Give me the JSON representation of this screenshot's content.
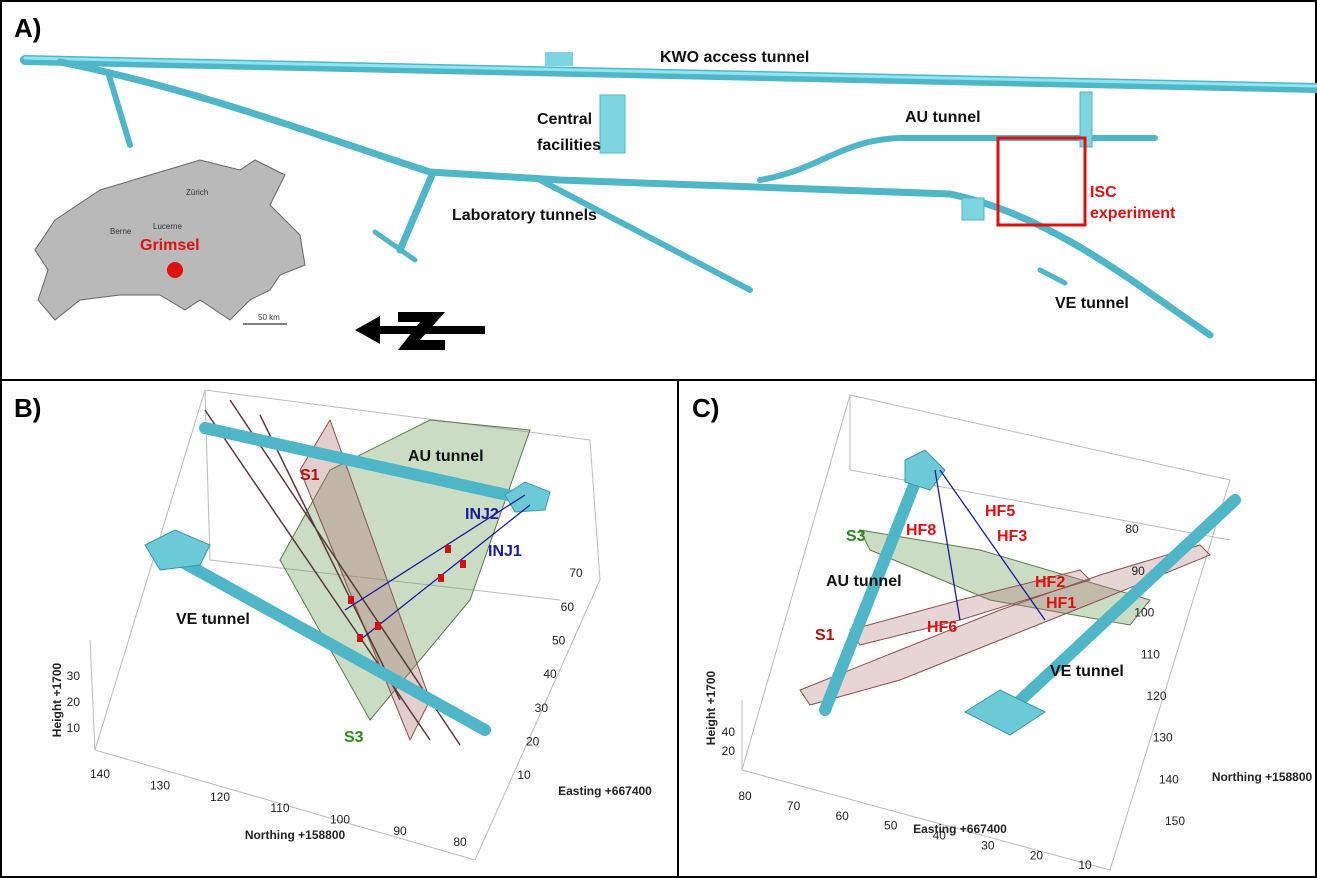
{
  "panel_a": {
    "label": "A)",
    "kwo_tunnel": "KWO access tunnel",
    "central_facilities": [
      "Central",
      "facilities"
    ],
    "au_tunnel": "AU tunnel",
    "isc_experiment": [
      "ISC",
      "experiment"
    ],
    "laboratory_tunnels": "Laboratory tunnels",
    "ve_tunnel": "VE tunnel",
    "map": {
      "site": "Grimsel",
      "cities": [
        "Zürich",
        "Lucerne",
        "Berne"
      ],
      "scale": "50 km"
    }
  },
  "panel_b": {
    "label": "B)",
    "s1": "S1",
    "au_tunnel": "AU tunnel",
    "inj2": "INJ2",
    "inj1": "INJ1",
    "ve_tunnel": "VE tunnel",
    "s3": "S3",
    "axes": {
      "z_label": "Height +1700",
      "z_ticks": [
        10,
        20,
        30
      ],
      "northing_label": "Northing +158800",
      "northing_ticks": [
        140,
        130,
        120,
        110,
        100,
        90,
        80
      ],
      "easting_label": "Easting +667400",
      "easting_ticks": [
        10,
        20,
        30,
        40,
        50,
        60,
        70
      ]
    }
  },
  "panel_c": {
    "label": "C)",
    "s3": "S3",
    "hf8": "HF8",
    "hf5": "HF5",
    "hf3": "HF3",
    "au_tunnel": "AU tunnel",
    "hf2": "HF2",
    "hf1": "HF1",
    "s1": "S1",
    "hf6": "HF6",
    "ve_tunnel": "VE tunnel",
    "axes": {
      "z_label": "Height +1700",
      "z_ticks": [
        20,
        40
      ],
      "easting_label": "Easting +667400",
      "easting_ticks": [
        80,
        70,
        60,
        50,
        40,
        30,
        20,
        10
      ],
      "northing_label": "Northing +158800",
      "northing_ticks": [
        80,
        90,
        100,
        110,
        120,
        130,
        140,
        150
      ]
    }
  }
}
